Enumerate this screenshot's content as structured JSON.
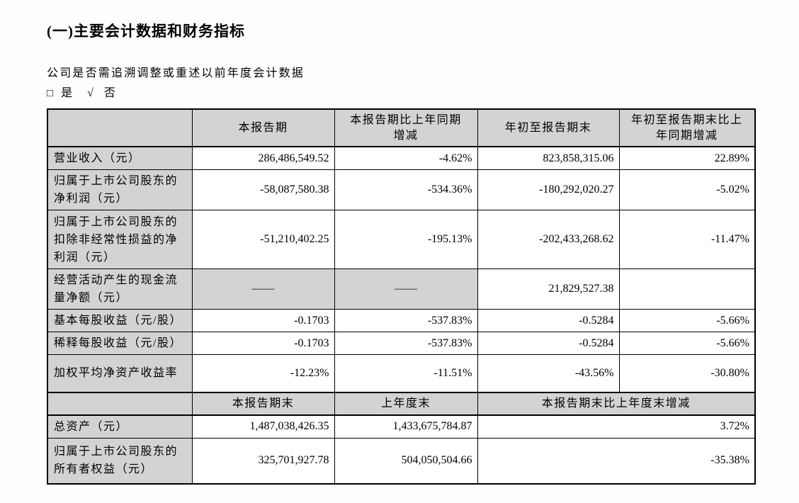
{
  "page": {
    "title": "(一)主要会计数据和财务指标",
    "question": "公司是否需追溯调整或重述以前年度会计数据",
    "checkbox_row": {
      "unchecked_symbol": "□",
      "yes_label": "是",
      "check_symbol": "√",
      "no_label": "否"
    }
  },
  "table": {
    "header_period": [
      "",
      "本报告期",
      "本报告期比上年同期\n增减",
      "年初至报告期末",
      "年初至报告期末比上\n年同期增减"
    ],
    "rows_period": [
      {
        "label": "营业收入（元）",
        "values": [
          "286,486,549.52",
          "-4.62%",
          "823,858,315.06",
          "22.89%"
        ]
      },
      {
        "label": "归属于上市公司股东的净利润（元）",
        "values": [
          "-58,087,580.38",
          "-534.36%",
          "-180,292,020.27",
          "-5.02%"
        ]
      },
      {
        "label": "归属于上市公司股东的扣除非经常性损益的净利润（元）",
        "values": [
          "-51,210,402.25",
          "-195.13%",
          "-202,433,268.62",
          "-11.47%"
        ]
      },
      {
        "label": "经营活动产生的现金流量净额（元）",
        "values": [
          "——",
          "——",
          "21,829,527.38",
          ""
        ],
        "dash_cols": [
          0,
          1
        ]
      },
      {
        "label": "基本每股收益（元/股）",
        "values": [
          "-0.1703",
          "-537.83%",
          "-0.5284",
          "-5.66%"
        ]
      },
      {
        "label": "稀释每股收益（元/股）",
        "values": [
          "-0.1703",
          "-537.83%",
          "-0.5284",
          "-5.66%"
        ]
      },
      {
        "label": "加权平均净资产收益率",
        "values": [
          "-12.23%",
          "-11.51%",
          "-43.56%",
          "-30.80%"
        ]
      }
    ],
    "header_yearend": [
      "",
      "本报告期末",
      "上年度末",
      "本报告期末比上年度末增减"
    ],
    "rows_yearend": [
      {
        "label": "总资产（元）",
        "values": [
          "1,487,038,426.35",
          "1,433,675,784.87",
          "3.72%"
        ]
      },
      {
        "label": "归属于上市公司股东的所有者权益（元）",
        "values": [
          "325,701,927.78",
          "504,050,504.66",
          "-35.38%"
        ]
      }
    ],
    "colors": {
      "header_bg": "#d3d3d3",
      "border": "#000000",
      "text": "#000000"
    }
  }
}
